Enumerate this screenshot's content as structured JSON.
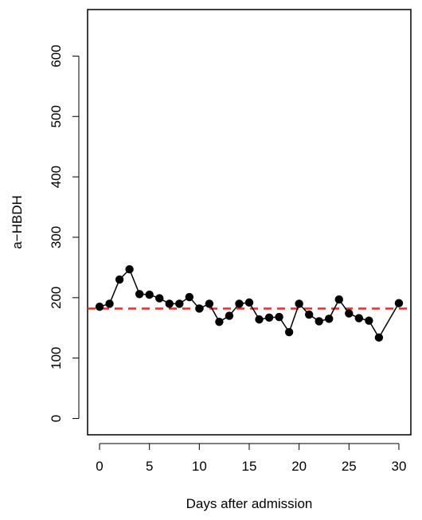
{
  "chart_data": {
    "type": "line",
    "title": "",
    "xlabel": "Days after admission",
    "ylabel": "a−HBDH",
    "xlim": [
      -1.2,
      31.2
    ],
    "ylim": [
      -27,
      677
    ],
    "xticks": [
      0,
      5,
      10,
      15,
      20,
      25,
      30
    ],
    "yticks": [
      0,
      100,
      200,
      300,
      400,
      500,
      600
    ],
    "grid": false,
    "legend": "none",
    "reference_line": {
      "y": 182,
      "color": "#e0302a",
      "style": "dashed"
    },
    "series": [
      {
        "color": "#000000",
        "marker": "filled-circle",
        "x": [
          0,
          1,
          2,
          3,
          4,
          5,
          6,
          7,
          8,
          9,
          10,
          11,
          12,
          13,
          14,
          15,
          16,
          17,
          18,
          19,
          20,
          21,
          22,
          23,
          24,
          25,
          26,
          27,
          28,
          30
        ],
        "y": [
          185,
          190,
          230,
          247,
          206,
          205,
          199,
          190,
          190,
          201,
          182,
          190,
          160,
          170,
          190,
          192,
          164,
          167,
          168,
          143,
          190,
          172,
          161,
          165,
          197,
          174,
          166,
          162,
          134,
          191
        ]
      }
    ]
  }
}
